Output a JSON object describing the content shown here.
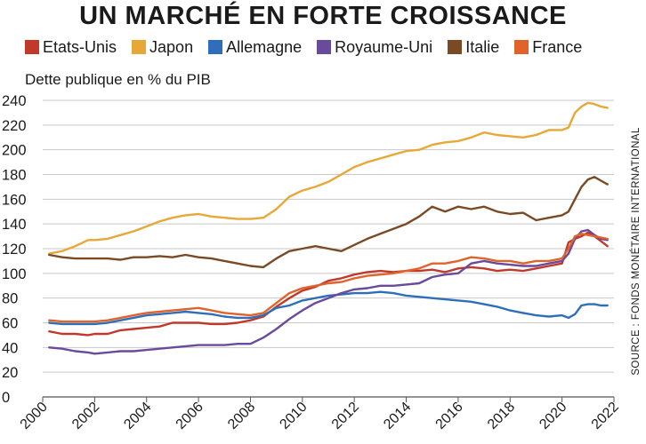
{
  "chart_data": {
    "type": "line",
    "title": "UN MARCHÉ EN FORTE CROISSANCE",
    "ylabel": "Dette publique en % du PIB",
    "source": "SOURCE : FONDS MONÉTAIRE INTERNATIONAL",
    "ylim": [
      0,
      240
    ],
    "xlim": [
      2000,
      2022
    ],
    "yticks": [
      0,
      20,
      40,
      60,
      80,
      100,
      120,
      140,
      160,
      180,
      200,
      220,
      240
    ],
    "xticks": [
      2000,
      2002,
      2004,
      2006,
      2008,
      2010,
      2012,
      2014,
      2016,
      2018,
      2020,
      2022
    ],
    "xtick_labels": [
      "2000",
      "2002",
      "2004",
      "2006",
      "2008",
      "2010",
      "2012",
      "2014",
      "2016",
      "2018",
      "2020",
      "2022"
    ],
    "grid": "horizontal",
    "legend_position": "top",
    "series": [
      {
        "name": "Etats-Unis",
        "color": "#c0392b",
        "x": [
          2000.25,
          2000.75,
          2001.25,
          2001.75,
          2002.0,
          2002.5,
          2003.0,
          2003.5,
          2004.0,
          2004.5,
          2005.0,
          2005.5,
          2006.0,
          2006.5,
          2007.0,
          2007.5,
          2008.0,
          2008.5,
          2009.0,
          2009.5,
          2010.0,
          2010.5,
          2011.0,
          2011.5,
          2012.0,
          2012.5,
          2013.0,
          2013.5,
          2014.0,
          2014.5,
          2015.0,
          2015.5,
          2016.0,
          2016.5,
          2017.0,
          2017.5,
          2018.0,
          2018.5,
          2019.0,
          2019.5,
          2020.0,
          2020.25,
          2020.5,
          2020.75,
          2021.0,
          2021.25,
          2021.5,
          2021.75
        ],
        "values": [
          53,
          51,
          51,
          50,
          51,
          51,
          54,
          55,
          56,
          57,
          60,
          60,
          60,
          59,
          59,
          60,
          62,
          65,
          73,
          80,
          86,
          89,
          94,
          96,
          99,
          101,
          102,
          101,
          102,
          102,
          103,
          101,
          104,
          105,
          104,
          102,
          103,
          102,
          104,
          106,
          108,
          125,
          128,
          130,
          133,
          130,
          126,
          122
        ]
      },
      {
        "name": "Japon",
        "color": "#e8a838",
        "x": [
          2000.25,
          2000.75,
          2001.25,
          2001.75,
          2002.0,
          2002.5,
          2003.0,
          2003.5,
          2004.0,
          2004.5,
          2005.0,
          2005.5,
          2006.0,
          2006.5,
          2007.0,
          2007.5,
          2008.0,
          2008.5,
          2009.0,
          2009.5,
          2010.0,
          2010.5,
          2011.0,
          2011.5,
          2012.0,
          2012.5,
          2013.0,
          2013.5,
          2014.0,
          2014.5,
          2015.0,
          2015.5,
          2016.0,
          2016.5,
          2017.0,
          2017.5,
          2018.0,
          2018.5,
          2019.0,
          2019.5,
          2020.0,
          2020.25,
          2020.5,
          2020.75,
          2021.0,
          2021.25,
          2021.5,
          2021.75
        ],
        "values": [
          116,
          118,
          122,
          127,
          127,
          128,
          131,
          134,
          138,
          142,
          145,
          147,
          148,
          146,
          145,
          144,
          144,
          145,
          152,
          162,
          167,
          170,
          174,
          180,
          186,
          190,
          193,
          196,
          199,
          200,
          204,
          206,
          207,
          210,
          214,
          212,
          211,
          210,
          212,
          216,
          216,
          218,
          230,
          235,
          238,
          237,
          235,
          234
        ]
      },
      {
        "name": "Allemagne",
        "color": "#2f6fba",
        "x": [
          2000.25,
          2000.75,
          2001.25,
          2001.75,
          2002.0,
          2002.5,
          2003.0,
          2003.5,
          2004.0,
          2004.5,
          2005.0,
          2005.5,
          2006.0,
          2006.5,
          2007.0,
          2007.5,
          2008.0,
          2008.5,
          2009.0,
          2009.5,
          2010.0,
          2010.5,
          2011.0,
          2011.5,
          2012.0,
          2012.5,
          2013.0,
          2013.5,
          2014.0,
          2014.5,
          2015.0,
          2015.5,
          2016.0,
          2016.5,
          2017.0,
          2017.5,
          2018.0,
          2018.5,
          2019.0,
          2019.5,
          2020.0,
          2020.25,
          2020.5,
          2020.75,
          2021.0,
          2021.25,
          2021.5,
          2021.75
        ],
        "values": [
          60,
          59,
          59,
          59,
          59,
          60,
          62,
          64,
          66,
          67,
          68,
          69,
          68,
          67,
          65,
          64,
          64,
          66,
          72,
          74,
          78,
          80,
          82,
          83,
          84,
          84,
          85,
          84,
          82,
          81,
          80,
          79,
          78,
          77,
          75,
          73,
          70,
          68,
          66,
          65,
          66,
          64,
          67,
          74,
          75,
          75,
          74,
          74
        ]
      },
      {
        "name": "Royaume-Uni",
        "color": "#6a4a9c",
        "x": [
          2000.25,
          2000.75,
          2001.25,
          2001.75,
          2002.0,
          2002.5,
          2003.0,
          2003.5,
          2004.0,
          2004.5,
          2005.0,
          2005.5,
          2006.0,
          2006.5,
          2007.0,
          2007.5,
          2008.0,
          2008.5,
          2009.0,
          2009.5,
          2010.0,
          2010.5,
          2011.0,
          2011.5,
          2012.0,
          2012.5,
          2013.0,
          2013.5,
          2014.0,
          2014.5,
          2015.0,
          2015.5,
          2016.0,
          2016.5,
          2017.0,
          2017.5,
          2018.0,
          2018.5,
          2019.0,
          2019.5,
          2020.0,
          2020.25,
          2020.5,
          2020.75,
          2021.0,
          2021.25,
          2021.5,
          2021.75
        ],
        "values": [
          40,
          39,
          37,
          36,
          35,
          36,
          37,
          37,
          38,
          39,
          40,
          41,
          42,
          42,
          42,
          43,
          43,
          48,
          55,
          63,
          70,
          76,
          80,
          84,
          87,
          88,
          90,
          90,
          91,
          92,
          97,
          99,
          100,
          108,
          110,
          108,
          107,
          106,
          106,
          108,
          110,
          116,
          128,
          134,
          135,
          131,
          128,
          127
        ]
      },
      {
        "name": "Italie",
        "color": "#7a4a24",
        "x": [
          2000.25,
          2000.75,
          2001.25,
          2001.75,
          2002.0,
          2002.5,
          2003.0,
          2003.5,
          2004.0,
          2004.5,
          2005.0,
          2005.5,
          2006.0,
          2006.5,
          2007.0,
          2007.5,
          2008.0,
          2008.5,
          2009.0,
          2009.5,
          2010.0,
          2010.5,
          2011.0,
          2011.5,
          2012.0,
          2012.5,
          2013.0,
          2013.5,
          2014.0,
          2014.5,
          2015.0,
          2015.5,
          2016.0,
          2016.5,
          2017.0,
          2017.5,
          2018.0,
          2018.5,
          2019.0,
          2019.5,
          2020.0,
          2020.25,
          2020.5,
          2020.75,
          2021.0,
          2021.25,
          2021.5,
          2021.75
        ],
        "values": [
          115,
          113,
          112,
          112,
          112,
          112,
          111,
          113,
          113,
          114,
          113,
          115,
          113,
          112,
          110,
          108,
          106,
          105,
          112,
          118,
          120,
          122,
          120,
          118,
          123,
          128,
          132,
          136,
          140,
          146,
          154,
          150,
          154,
          152,
          154,
          150,
          148,
          149,
          143,
          145,
          147,
          150,
          160,
          170,
          176,
          178,
          175,
          172
        ]
      },
      {
        "name": "France",
        "color": "#e0632a",
        "x": [
          2000.25,
          2000.75,
          2001.25,
          2001.75,
          2002.0,
          2002.5,
          2003.0,
          2003.5,
          2004.0,
          2004.5,
          2005.0,
          2005.5,
          2006.0,
          2006.5,
          2007.0,
          2007.5,
          2008.0,
          2008.5,
          2009.0,
          2009.5,
          2010.0,
          2010.5,
          2011.0,
          2011.5,
          2012.0,
          2012.5,
          2013.0,
          2013.5,
          2014.0,
          2014.5,
          2015.0,
          2015.5,
          2016.0,
          2016.5,
          2017.0,
          2017.5,
          2018.0,
          2018.5,
          2019.0,
          2019.5,
          2020.0,
          2020.25,
          2020.5,
          2020.75,
          2021.0,
          2021.25,
          2021.5,
          2021.75
        ],
        "values": [
          62,
          61,
          61,
          61,
          61,
          62,
          64,
          66,
          68,
          69,
          70,
          71,
          72,
          70,
          68,
          67,
          66,
          68,
          76,
          84,
          88,
          90,
          92,
          93,
          96,
          98,
          99,
          100,
          102,
          104,
          108,
          108,
          110,
          113,
          112,
          110,
          110,
          108,
          110,
          110,
          112,
          120,
          130,
          132,
          131,
          130,
          129,
          128
        ]
      }
    ]
  }
}
